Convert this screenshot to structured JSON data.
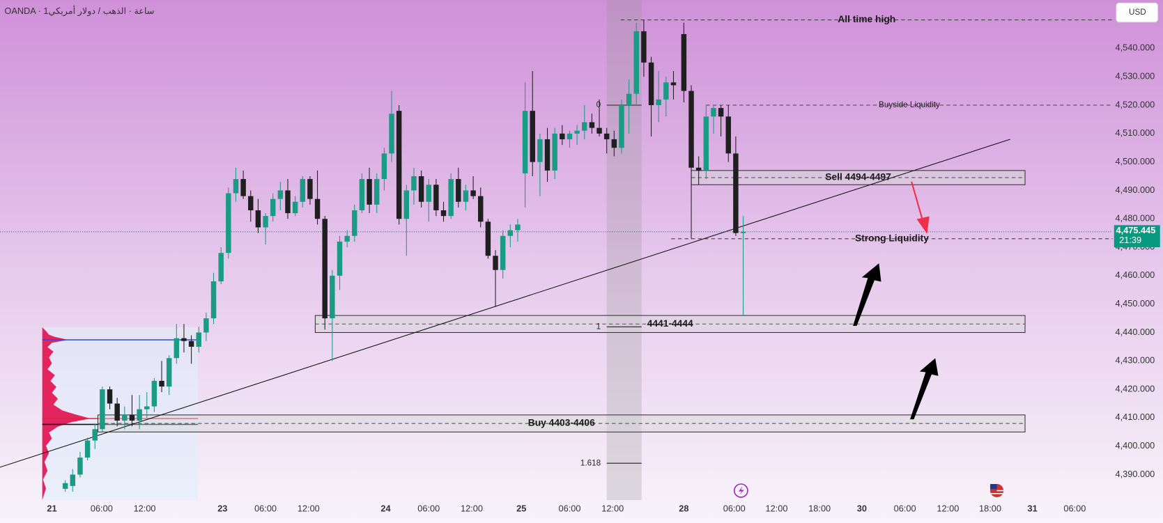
{
  "chart_data": {
    "type": "candlestick",
    "title": "OANDA · 1ساعة · الذهب / دولار أمريكي",
    "currency": "USD",
    "up_color": "#1a9b84",
    "down_color": "#1f1f1f",
    "x": [
      8.8,
      9.8,
      10.8,
      11.8,
      12.8,
      13.8,
      14.8,
      15.8,
      16.8,
      17.8,
      18.8,
      19.8,
      20.8,
      21.8,
      22.8,
      23.8,
      24.8,
      25.8,
      26.8,
      27.8,
      28.8,
      29.8,
      30.8,
      31.8,
      32.8,
      33.8,
      34.8,
      35.8,
      36.8,
      37.8,
      38.8,
      39.8,
      40.8,
      41.8,
      42.8,
      43.8,
      44.8,
      45.8,
      46.8,
      47.8,
      48.8,
      49.8,
      50.8,
      51.8,
      52.8,
      53.8,
      54.8,
      55.8,
      56.8,
      57.8,
      58.8,
      59.8,
      60.8,
      61.8,
      62.8,
      63.8,
      64.8,
      65.8,
      66.8,
      67.8,
      68.8,
      69.8,
      70.8,
      71.8,
      72.8,
      73.8,
      74.8,
      75.8,
      76.8,
      77.8,
      78.8,
      79.8,
      80.8,
      81.8,
      82.8,
      83.8,
      84.8,
      85.8,
      86.8,
      87.8,
      88.8,
      89.8,
      90.8,
      92.2,
      93.2,
      94.2,
      95.2,
      96.2,
      97.2,
      98.2,
      99.2,
      100.2
    ],
    "open": [
      4385,
      4386,
      4390,
      4396,
      4402,
      4406,
      4420,
      4415,
      4409,
      4411,
      4409,
      4413,
      4414,
      4423,
      4421,
      4431,
      4438,
      4437,
      4435,
      4440,
      4445,
      4458,
      4468,
      4489,
      4494,
      4488,
      4483,
      4477,
      4481,
      4487,
      4490,
      4482,
      4486,
      4494,
      4487,
      4480,
      4445,
      4460,
      4472,
      4474,
      4483,
      4494,
      4485,
      4494,
      4503,
      4518,
      4480,
      4490,
      4495,
      4486,
      4492,
      4483,
      4481,
      4494,
      4486,
      4490,
      4488,
      4479,
      4467,
      4462,
      4474,
      4476,
      4496,
      4518,
      4500,
      4508,
      4497,
      4510,
      4508,
      4510,
      4511,
      4514,
      4512,
      4510,
      4508,
      4505,
      4520,
      4524,
      4546,
      4535,
      4520,
      4522,
      4528,
      4545,
      4525,
      4498,
      4497,
      4516,
      4519,
      4516,
      4503,
      4475
    ],
    "high": [
      4388,
      4392,
      4398,
      4403,
      4408,
      4421,
      4421,
      4417,
      4414,
      4418,
      4418,
      4419,
      4424,
      4430,
      4432,
      4443,
      4443,
      4439,
      4442,
      4447,
      4461,
      4470,
      4491,
      4498,
      4497,
      4490,
      4487,
      4482,
      4489,
      4493,
      4494,
      4488,
      4495,
      4495,
      4497,
      4481,
      4462,
      4474,
      4476,
      4485,
      4496,
      4498,
      4496,
      4505,
      4525,
      4520,
      4492,
      4498,
      4497,
      4494,
      4494,
      4486,
      4496,
      4498,
      4492,
      4495,
      4491,
      4480,
      4469,
      4476,
      4478,
      4480,
      4528,
      4532,
      4510,
      4512,
      4512,
      4513,
      4511,
      4513,
      4520,
      4517,
      4522,
      4512,
      4511,
      4522,
      4529,
      4549,
      4550,
      4537,
      4532,
      4530,
      4532,
      4549,
      4527,
      4502,
      4520,
      4520,
      4520,
      4520,
      4509,
      4481
    ],
    "low": [
      4384,
      4384,
      4389,
      4395,
      4399,
      4405,
      4413,
      4407,
      4406,
      4407,
      4406,
      4410,
      4412,
      4419,
      4418,
      4429,
      4433,
      4429,
      4433,
      4437,
      4443,
      4457,
      4466,
      4486,
      4487,
      4479,
      4475,
      4471,
      4479,
      4483,
      4480,
      4481,
      4484,
      4485,
      4478,
      4441,
      4430,
      4455,
      4470,
      4472,
      4482,
      4482,
      4482,
      4490,
      4500,
      4478,
      4467,
      4485,
      4484,
      4479,
      4481,
      4479,
      4480,
      4484,
      4483,
      4487,
      4477,
      4466,
      4449,
      4459,
      4470,
      4472,
      4484,
      4495,
      4488,
      4493,
      4494,
      4506,
      4505,
      4506,
      4508,
      4510,
      4509,
      4503,
      4502,
      4503,
      4510,
      4520,
      4530,
      4509,
      4514,
      4516,
      4522,
      4521,
      4473,
      4492,
      4494,
      4510,
      4509,
      4500,
      4474,
      4446
    ],
    "close": [
      4387,
      4390,
      4396,
      4402,
      4406,
      4420,
      4415,
      4409,
      4411,
      4409,
      4413,
      4414,
      4423,
      4421,
      4431,
      4438,
      4437,
      4435,
      4440,
      4445,
      4458,
      4468,
      4489,
      4494,
      4488,
      4483,
      4477,
      4481,
      4487,
      4490,
      4482,
      4486,
      4494,
      4487,
      4480,
      4445,
      4460,
      4472,
      4474,
      4483,
      4494,
      4485,
      4494,
      4503,
      4517,
      4480,
      4490,
      4495,
      4486,
      4492,
      4483,
      4481,
      4494,
      4486,
      4490,
      4488,
      4479,
      4467,
      4462,
      4474,
      4476,
      4478,
      4518,
      4500,
      4508,
      4497,
      4510,
      4508,
      4510,
      4511,
      4514,
      4512,
      4510,
      4508,
      4505,
      4520,
      4524,
      4546,
      4535,
      4520,
      4522,
      4528,
      4527,
      4525,
      4498,
      4497,
      4516,
      4519,
      4516,
      4503,
      4475,
      4475.445
    ],
    "xlim": [
      0,
      150
    ],
    "ylim": [
      4381,
      4557
    ],
    "xticks": [
      {
        "value": 7.0,
        "label": "21"
      },
      {
        "value": 13.7,
        "label": "06:00"
      },
      {
        "value": 19.5,
        "label": "12:00"
      },
      {
        "value": 30.0,
        "label": "23"
      },
      {
        "value": 35.8,
        "label": "06:00"
      },
      {
        "value": 41.6,
        "label": "12:00"
      },
      {
        "value": 52.0,
        "label": "24"
      },
      {
        "value": 57.8,
        "label": "06:00"
      },
      {
        "value": 63.6,
        "label": "12:00"
      },
      {
        "value": 70.3,
        "label": "25"
      },
      {
        "value": 76.8,
        "label": "06:00"
      },
      {
        "value": 82.6,
        "label": "12:00"
      },
      {
        "value": 92.2,
        "label": "28"
      },
      {
        "value": 99.0,
        "label": "06:00"
      },
      {
        "value": 104.7,
        "label": "12:00"
      },
      {
        "value": 110.5,
        "label": "18:00"
      },
      {
        "value": 116.2,
        "label": "30"
      },
      {
        "value": 122.0,
        "label": "06:00"
      },
      {
        "value": 127.8,
        "label": "12:00"
      },
      {
        "value": 133.5,
        "label": "18:00"
      },
      {
        "value": 139.2,
        "label": "31"
      },
      {
        "value": 144.9,
        "label": "06:00"
      }
    ],
    "yticks": [
      {
        "value": 4390,
        "label": "4,390.000"
      },
      {
        "value": 4400,
        "label": "4,400.000"
      },
      {
        "value": 4410,
        "label": "4,410.000"
      },
      {
        "value": 4420,
        "label": "4,420.000"
      },
      {
        "value": 4430,
        "label": "4,430.000"
      },
      {
        "value": 4440,
        "label": "4,440.000"
      },
      {
        "value": 4450,
        "label": "4,450.000"
      },
      {
        "value": 4460,
        "label": "4,460.000"
      },
      {
        "value": 4470,
        "label": "4,470.000"
      },
      {
        "value": 4480,
        "label": "4,480.000"
      },
      {
        "value": 4490,
        "label": "4,490.000"
      },
      {
        "value": 4500,
        "label": "4,500.000"
      },
      {
        "value": 4510,
        "label": "4,510.000"
      },
      {
        "value": 4520,
        "label": "4,520.000"
      },
      {
        "value": 4530,
        "label": "4,530.000"
      },
      {
        "value": 4540,
        "label": "4,540.000"
      }
    ],
    "last_price": {
      "value": 4475.445,
      "label": "4,475.445"
    },
    "countdown": "21:39",
    "levels": [
      {
        "label": "All time high",
        "value": 4550,
        "x0": 83.7,
        "x1": 150
      },
      {
        "label": "Buyside Liquidity",
        "value": 4520,
        "x0": 95.2,
        "x1": 150
      },
      {
        "label": "Strong Liquidity",
        "value": 4473,
        "x0": 90.5,
        "x1": 150
      }
    ],
    "zones": [
      {
        "label": "Sell 4494-4497",
        "low": 4492,
        "high": 4497,
        "x0": 93.2,
        "x1": 138.2
      },
      {
        "label": "4441-4444",
        "low": 4440,
        "high": 4446,
        "x0": 42.5,
        "x1": 138.2
      },
      {
        "label": "Buy 4403-4406",
        "low": 4405,
        "high": 4411,
        "x0": 13.2,
        "x1": 138.2
      }
    ],
    "trendline": {
      "x": [
        0,
        136.2
      ],
      "y": [
        4392.6,
        4508
      ]
    },
    "fib": {
      "x0": 81.8,
      "x1": 86.5,
      "levels": [
        {
          "label": "0",
          "value": 4520
        },
        {
          "label": "1",
          "value": 4442
        },
        {
          "label": "1.618",
          "value": 4394
        }
      ]
    }
  }
}
